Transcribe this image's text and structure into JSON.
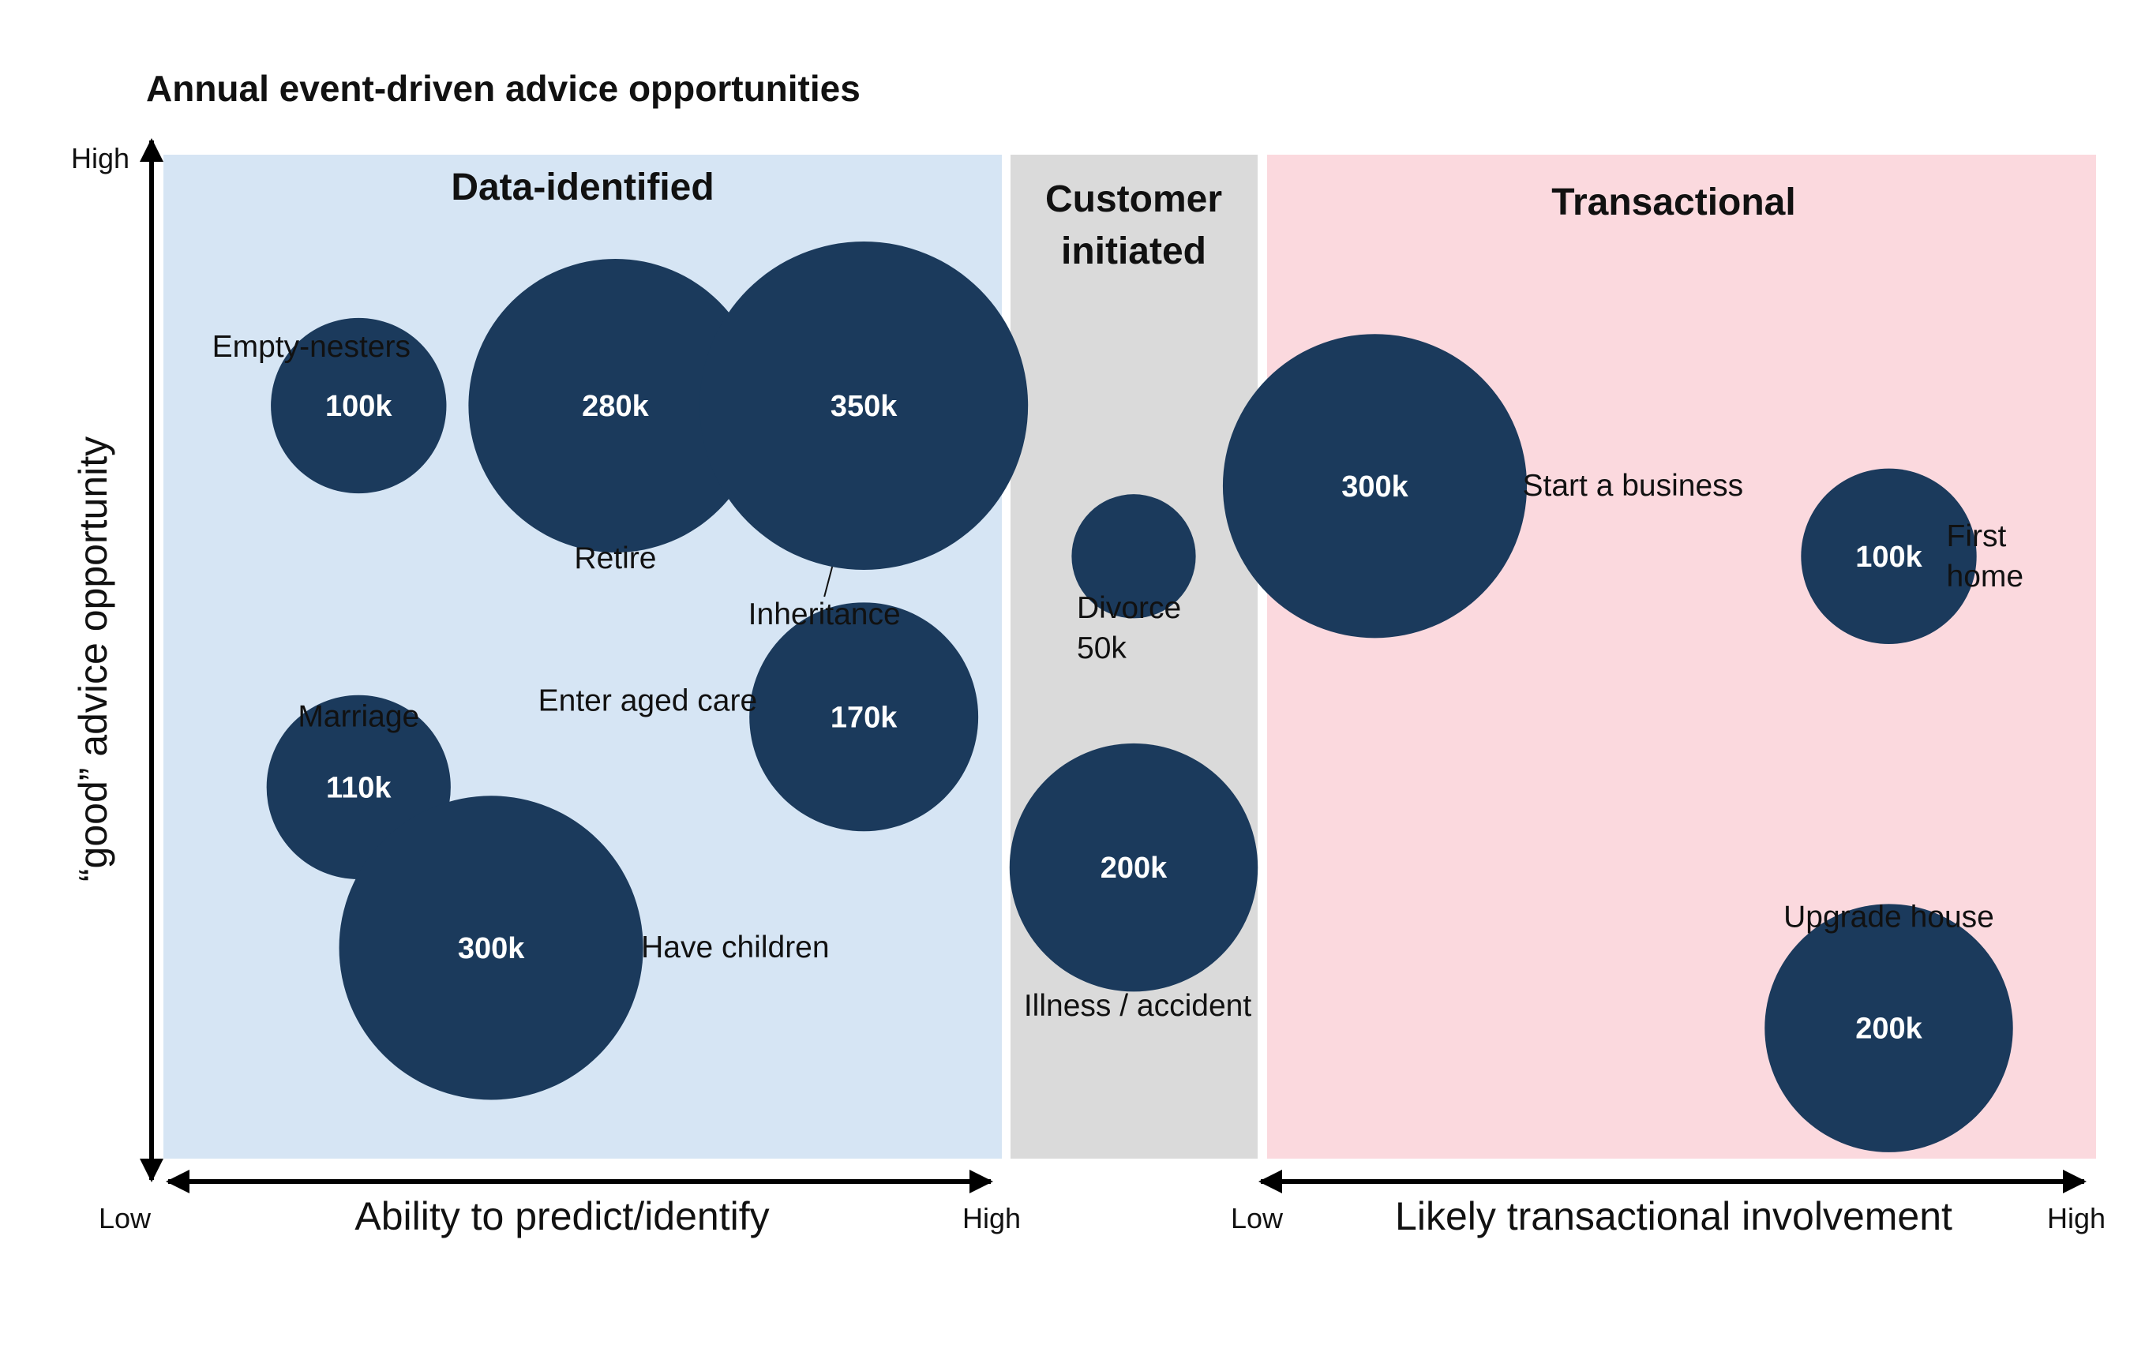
{
  "colors": {
    "bubble": "#1b3a5c",
    "data_identified_bg": "#d6e5f4",
    "customer_initiated_bg": "#dadada",
    "transactional_bg": "#fbd9de",
    "axis": "#000000"
  },
  "chart_data": {
    "type": "bubble",
    "title": "Annual event-driven advice opportunities",
    "ylabel": "“good” advice opportunity",
    "y_ticks": {
      "low": "Low",
      "high": "High"
    },
    "x_axes": [
      {
        "label": "Ability to predict/identify",
        "low": "Low",
        "high": "High"
      },
      {
        "label": "Likely transactional involvement",
        "low": "Low",
        "high": "High"
      }
    ],
    "regions": [
      {
        "key": "data_identified",
        "title": [
          "Data-identified"
        ]
      },
      {
        "key": "customer_initiated",
        "title": [
          "Customer",
          "initiated"
        ]
      },
      {
        "key": "transactional",
        "title": [
          "Transactional"
        ]
      }
    ],
    "bubbles": [
      {
        "event": "Empty-nesters",
        "region": "data_identified",
        "value": 100,
        "value_label": "100k",
        "predictability": 0.23,
        "advice_opportunity": 0.75
      },
      {
        "event": "Retire",
        "region": "data_identified",
        "value": 280,
        "value_label": "280k",
        "predictability": 0.54,
        "advice_opportunity": 0.75
      },
      {
        "event": "Inheritance",
        "region": "data_identified",
        "value": 350,
        "value_label": "350k",
        "predictability": 0.84,
        "advice_opportunity": 0.75
      },
      {
        "event": "Enter aged care",
        "region": "data_identified",
        "value": 170,
        "value_label": "170k",
        "predictability": 0.84,
        "advice_opportunity": 0.44
      },
      {
        "event": "Marriage",
        "region": "data_identified",
        "value": 110,
        "value_label": "110k",
        "predictability": 0.23,
        "advice_opportunity": 0.37
      },
      {
        "event": "Have children",
        "region": "data_identified",
        "value": 300,
        "value_label": "300k",
        "predictability": 0.39,
        "advice_opportunity": 0.21
      },
      {
        "event": "Divorce",
        "region": "customer_initiated",
        "value": 50,
        "value_label": "50k",
        "advice_opportunity": 0.6
      },
      {
        "event": "Illness / accident",
        "region": "customer_initiated",
        "value": 200,
        "value_label": "200k",
        "advice_opportunity": 0.29
      },
      {
        "event": "Start a business",
        "region": "transactional",
        "value": 300,
        "value_label": "300k",
        "transactional_involvement": 0.13,
        "advice_opportunity": 0.67
      },
      {
        "event": "First home",
        "region": "transactional",
        "value": 100,
        "value_label": "100k",
        "transactional_involvement": 0.75,
        "advice_opportunity": 0.6
      },
      {
        "event": "Upgrade house",
        "region": "transactional",
        "value": 200,
        "value_label": "200k",
        "transactional_involvement": 0.75,
        "advice_opportunity": 0.13
      }
    ]
  }
}
